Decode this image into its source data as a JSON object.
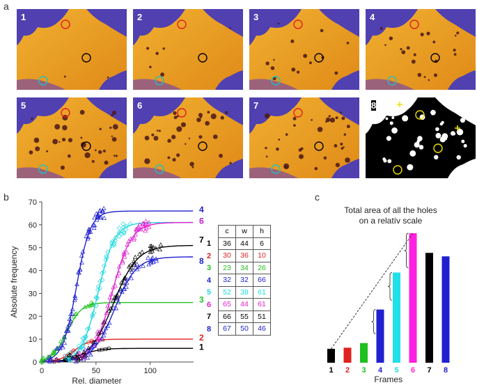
{
  "panels": {
    "a": "a",
    "b": "b",
    "c": "c"
  },
  "tiles": [
    {
      "label": "1"
    },
    {
      "label": "2"
    },
    {
      "label": "3"
    },
    {
      "label": "4"
    },
    {
      "label": "5"
    },
    {
      "label": "6"
    },
    {
      "label": "7"
    },
    {
      "label": "8"
    }
  ],
  "colors": {
    "orange": "#f0a020",
    "purple": "#5040b0",
    "red": "#e02020",
    "black": "#000000",
    "cyan": "#20c0c0",
    "yellow": "#f0e000",
    "green": "#20c020",
    "blue": "#2020d0",
    "magenta": "#e020d0",
    "grey_line": "#333333"
  },
  "table": {
    "headers": [
      "c",
      "w",
      "h"
    ],
    "rows": [
      {
        "id": "1",
        "color": "#000000",
        "c": "36",
        "w": "44",
        "h": "6"
      },
      {
        "id": "2",
        "color": "#e02020",
        "c": "30",
        "w": "36",
        "h": "10"
      },
      {
        "id": "3",
        "color": "#20c020",
        "c": "23",
        "w": "34",
        "h": "26"
      },
      {
        "id": "4",
        "color": "#2020d0",
        "c": "32",
        "w": "32",
        "h": "66"
      },
      {
        "id": "5",
        "color": "#20d8e0",
        "c": "52",
        "w": "38",
        "h": "61"
      },
      {
        "id": "6",
        "color": "#e020d0",
        "c": "65",
        "w": "44",
        "h": "61"
      },
      {
        "id": "7",
        "color": "#000000",
        "c": "66",
        "w": "55",
        "h": "51"
      },
      {
        "id": "8",
        "color": "#2020d0",
        "c": "67",
        "w": "50",
        "h": "46"
      }
    ]
  },
  "chart_data": [
    {
      "type": "line",
      "title": "",
      "xlabel": "Rel. diameter",
      "ylabel": "Absolute frequency",
      "xlim": [
        0,
        140
      ],
      "ylim": [
        0,
        70
      ],
      "xticks": [
        "0",
        "50",
        "100"
      ],
      "yticks": [
        "0",
        "10",
        "20",
        "30",
        "40",
        "50",
        "60",
        "70"
      ],
      "series": [
        {
          "name": "1",
          "color": "#000000",
          "c": 36,
          "w": 44,
          "h": 6
        },
        {
          "name": "2",
          "color": "#e02020",
          "c": 30,
          "w": 36,
          "h": 10
        },
        {
          "name": "3",
          "color": "#20c020",
          "c": 23,
          "w": 34,
          "h": 26
        },
        {
          "name": "4",
          "color": "#2020d0",
          "c": 32,
          "w": 32,
          "h": 66
        },
        {
          "name": "5",
          "color": "#20d8e0",
          "c": 52,
          "w": 38,
          "h": 61
        },
        {
          "name": "6",
          "color": "#e020d0",
          "c": 65,
          "w": 44,
          "h": 61
        },
        {
          "name": "7",
          "color": "#000000",
          "c": 66,
          "w": 55,
          "h": 51
        },
        {
          "name": "8",
          "color": "#2020d0",
          "c": 67,
          "w": 50,
          "h": 46
        }
      ]
    },
    {
      "type": "bar",
      "title": "Total area of all the holes on a relatív scale",
      "title_lines": [
        "Total area of all the holes",
        "on a relatív scale"
      ],
      "xlabel": "Frames",
      "ylabel": "",
      "categories": [
        "1",
        "2",
        "3",
        "4",
        "5",
        "6",
        "7",
        "8"
      ],
      "colors": [
        "#000000",
        "#e02020",
        "#20c020",
        "#2020d0",
        "#20e0e8",
        "#ff20e0",
        "#000000",
        "#2020d0"
      ],
      "values": [
        6,
        6.5,
        8.5,
        23,
        39,
        56,
        47.5,
        46
      ],
      "ylim": [
        0,
        56
      ]
    }
  ]
}
